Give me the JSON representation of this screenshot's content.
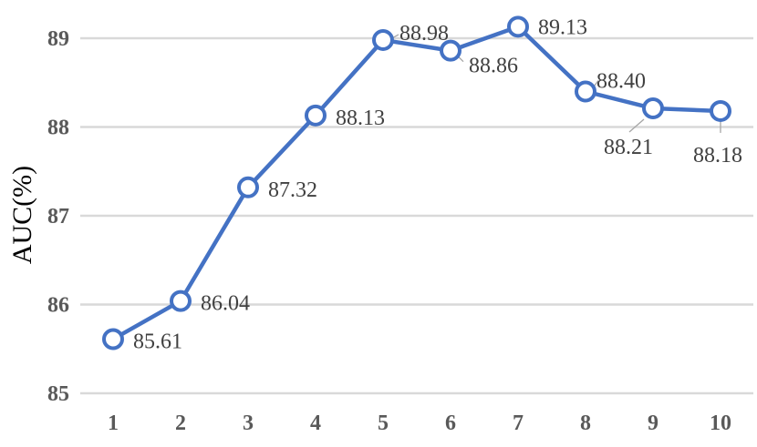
{
  "chart_data": {
    "type": "line",
    "title": "",
    "xlabel": "",
    "ylabel": "AUC(%)",
    "x": [
      "1",
      "2",
      "3",
      "4",
      "5",
      "6",
      "7",
      "8",
      "9",
      "10"
    ],
    "series": [
      {
        "values": [
          85.61,
          86.04,
          87.32,
          88.13,
          88.98,
          88.86,
          89.13,
          88.4,
          88.21,
          88.18
        ],
        "labels": [
          "85.61",
          "86.04",
          "87.32",
          "88.13",
          "88.98",
          "88.86",
          "89.13",
          "88.40",
          "88.21",
          "88.18"
        ],
        "color": "#4472c4",
        "marker": "open-circle"
      }
    ],
    "ylim": [
      85,
      89
    ],
    "yticks": [
      "85",
      "86",
      "87",
      "88",
      "89"
    ],
    "grid": true,
    "legend": "none"
  }
}
